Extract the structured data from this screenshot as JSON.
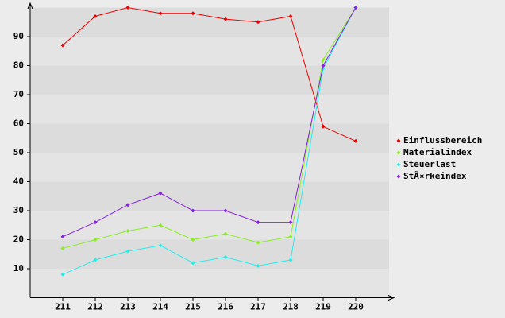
{
  "chart_data": {
    "type": "line",
    "categories": [
      "211",
      "212",
      "213",
      "214",
      "215",
      "216",
      "217",
      "218",
      "219",
      "220"
    ],
    "series": [
      {
        "name": "Einflussbereich",
        "color": "#ee0000",
        "values": [
          87,
          97,
          100,
          98,
          98,
          96,
          95,
          97,
          59,
          54
        ]
      },
      {
        "name": "Materialindex",
        "color": "#88ee22",
        "values": [
          17,
          20,
          23,
          25,
          20,
          22,
          19,
          21,
          82,
          100
        ]
      },
      {
        "name": "Steuerlast",
        "color": "#22eeee",
        "values": [
          8,
          13,
          16,
          18,
          12,
          14,
          11,
          13,
          79,
          100
        ]
      },
      {
        "name": "StÃ¤rkeindex",
        "color": "#8822dd",
        "values": [
          21,
          26,
          32,
          36,
          30,
          30,
          26,
          26,
          80,
          100
        ]
      }
    ],
    "ylim": [
      0,
      100
    ],
    "yticks": [
      10,
      20,
      30,
      40,
      50,
      60,
      70,
      80,
      90
    ],
    "grid": true,
    "legend": "right"
  }
}
